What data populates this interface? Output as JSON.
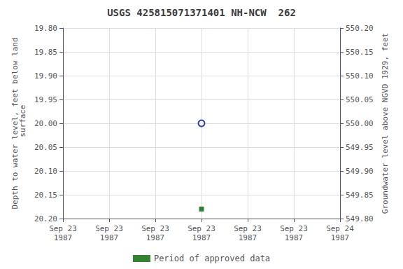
{
  "chart_data": {
    "type": "scatter",
    "title": "USGS 425815071371401 NH-NCW  262",
    "ylabel": "Depth to water level, feet below land\n surface",
    "y2label": "Groundwater level above NGVD 1929, feet",
    "categories": [
      "Sep 23\n1987",
      "Sep 23\n1987",
      "Sep 23\n1987",
      "Sep 23\n1987",
      "Sep 23\n1987",
      "Sep 23\n1987",
      "Sep 24\n1987"
    ],
    "series": [
      {
        "color": "#0000cc",
        "marker": "open_circle",
        "values": [
          null,
          null,
          null,
          20.0,
          null,
          null,
          null
        ]
      },
      {
        "name": "Period of approved data",
        "color": "#006400",
        "marker": "square",
        "values": [
          null,
          null,
          null,
          20.18,
          null,
          null,
          null
        ]
      }
    ],
    "ylim": [
      20.2,
      19.8
    ],
    "yticks": [
      {
        "value": 19.8,
        "label": "19.80"
      },
      {
        "value": 19.85,
        "label": "19.85"
      },
      {
        "value": 19.9,
        "label": "19.90"
      },
      {
        "value": 19.95,
        "label": "19.95"
      },
      {
        "value": 20.0,
        "label": "20.00"
      },
      {
        "value": 20.05,
        "label": "20.05"
      },
      {
        "value": 20.1,
        "label": "20.10"
      },
      {
        "value": 20.15,
        "label": "20.15"
      },
      {
        "value": 20.2,
        "label": "20.20"
      }
    ],
    "y2lim": [
      549.8,
      550.2
    ],
    "y2ticks": [
      {
        "value": 550.2,
        "label": "550.20"
      },
      {
        "value": 550.15,
        "label": "550.15"
      },
      {
        "value": 550.1,
        "label": "550.10"
      },
      {
        "value": 550.05,
        "label": "550.05"
      },
      {
        "value": 550.0,
        "label": "550.00"
      },
      {
        "value": 549.95,
        "label": "549.95"
      },
      {
        "value": 549.9,
        "label": "549.90"
      },
      {
        "value": 549.85,
        "label": "549.85"
      },
      {
        "value": 549.8,
        "label": "549.80"
      }
    ],
    "grid": true,
    "legend": "bottom"
  }
}
